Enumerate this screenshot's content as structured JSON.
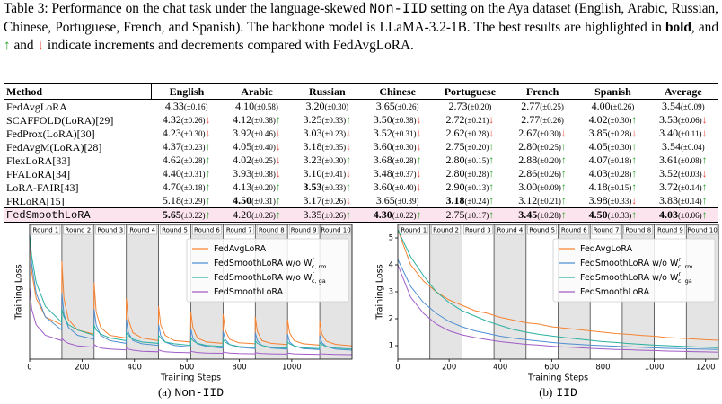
{
  "caption": {
    "parts": [
      "Table 3: Performance on the chat task under the language-skewed ",
      "Non-IID",
      " setting on the Aya dataset (English, Arabic, Russian, Chinese, Portuguese, French, and Spanish). The backbone model is LLaMA-3.2-1B. The best results are highlighted in ",
      "bold",
      ", and ",
      "↑",
      " and ",
      "↓",
      " indicate increments and decrements compared with FedAvgLoRA."
    ]
  },
  "table": {
    "headers": [
      "Method",
      "English",
      "Arabic",
      "Russian",
      "Chinese",
      "Portuguese",
      "French",
      "Spanish",
      "Average"
    ],
    "rows": [
      {
        "method": "FedAvgLoRA",
        "cells": [
          {
            "value": "4.33",
            "std": "(±0.16)"
          },
          {
            "value": "4.10",
            "std": "(±0.58)"
          },
          {
            "value": "3.20",
            "std": "(±0.30)"
          },
          {
            "value": "3.65",
            "std": "(±0.26)"
          },
          {
            "value": "2.73",
            "std": "(±0.20)"
          },
          {
            "value": "2.77",
            "std": "(±0.25)"
          },
          {
            "value": "4.00",
            "std": "(±0.26)"
          },
          {
            "value": "3.54",
            "std": "(±0.09)"
          }
        ]
      },
      {
        "method": "SCAFFOLD(LoRA)[29]",
        "cells": [
          {
            "value": "4.32",
            "std": "(±0.26)",
            "arrow": "↓"
          },
          {
            "value": "4.12",
            "std": "(±0.38)",
            "arrow": "↑"
          },
          {
            "value": "3.25",
            "std": "(±0.33)",
            "arrow": "↑"
          },
          {
            "value": "3.50",
            "std": "(±0.38)",
            "arrow": "↓"
          },
          {
            "value": "2.72",
            "std": "(±0.21)",
            "arrow": "↓"
          },
          {
            "value": "2.77",
            "std": "(±0.26)"
          },
          {
            "value": "4.02",
            "std": "(±0.30)",
            "arrow": "↑"
          },
          {
            "value": "3.53",
            "std": "(±0.06)",
            "arrow": "↓"
          }
        ]
      },
      {
        "method": "FedProx(LoRA)[30]",
        "cells": [
          {
            "value": "4.23",
            "std": "(±0.30)",
            "arrow": "↓"
          },
          {
            "value": "3.92",
            "std": "(±0.46)",
            "arrow": "↓"
          },
          {
            "value": "3.03",
            "std": "(±0.23)",
            "arrow": "↓"
          },
          {
            "value": "3.52",
            "std": "(±0.31)",
            "arrow": "↓"
          },
          {
            "value": "2.62",
            "std": "(±0.28)",
            "arrow": "↓"
          },
          {
            "value": "2.67",
            "std": "(±0.30)",
            "arrow": "↓"
          },
          {
            "value": "3.85",
            "std": "(±0.28)",
            "arrow": "↓"
          },
          {
            "value": "3.40",
            "std": "(±0.11)",
            "arrow": "↓"
          }
        ]
      },
      {
        "method": "FedAvgM(LoRA)[28]",
        "cells": [
          {
            "value": "4.37",
            "std": "(±0.23)",
            "arrow": "↑"
          },
          {
            "value": "4.05",
            "std": "(±0.40)",
            "arrow": "↓"
          },
          {
            "value": "3.18",
            "std": "(±0.35)",
            "arrow": "↓"
          },
          {
            "value": "3.60",
            "std": "(±0.30)",
            "arrow": "↓"
          },
          {
            "value": "2.75",
            "std": "(±0.20)",
            "arrow": "↑"
          },
          {
            "value": "2.80",
            "std": "(±0.25)",
            "arrow": "↑"
          },
          {
            "value": "4.05",
            "std": "(±0.30)",
            "arrow": "↑"
          },
          {
            "value": "3.54",
            "std": "(±0.04)"
          }
        ]
      },
      {
        "method": "FlexLoRA[33]",
        "cells": [
          {
            "value": "4.62",
            "std": "(±0.28)",
            "arrow": "↑"
          },
          {
            "value": "4.02",
            "std": "(±0.25)",
            "arrow": "↓"
          },
          {
            "value": "3.23",
            "std": "(±0.30)",
            "arrow": "↑"
          },
          {
            "value": "3.68",
            "std": "(±0.28)",
            "arrow": "↑"
          },
          {
            "value": "2.80",
            "std": "(±0.15)",
            "arrow": "↑"
          },
          {
            "value": "2.88",
            "std": "(±0.20)",
            "arrow": "↑"
          },
          {
            "value": "4.07",
            "std": "(±0.18)",
            "arrow": "↑"
          },
          {
            "value": "3.61",
            "std": "(±0.08)",
            "arrow": "↑"
          }
        ]
      },
      {
        "method": "FFALoRA[34]",
        "cells": [
          {
            "value": "4.40",
            "std": "(±0.31)",
            "arrow": "↑"
          },
          {
            "value": "3.93",
            "std": "(±0.38)",
            "arrow": "↓"
          },
          {
            "value": "3.10",
            "std": "(±0.41)",
            "arrow": "↓"
          },
          {
            "value": "3.48",
            "std": "(±0.37)",
            "arrow": "↓"
          },
          {
            "value": "2.80",
            "std": "(±0.28)",
            "arrow": "↑"
          },
          {
            "value": "2.86",
            "std": "(±0.26)",
            "arrow": "↑"
          },
          {
            "value": "4.03",
            "std": "(±0.28)",
            "arrow": "↑"
          },
          {
            "value": "3.52",
            "std": "(±0.03)",
            "arrow": "↓"
          }
        ]
      },
      {
        "method": "LoRA-FAIR[43]",
        "cells": [
          {
            "value": "4.70",
            "std": "(±0.18)",
            "arrow": "↑"
          },
          {
            "value": "4.13",
            "std": "(±0.20)",
            "arrow": "↑"
          },
          {
            "value": "3.53",
            "std": "(±0.33)",
            "arrow": "↑",
            "bold": true
          },
          {
            "value": "3.60",
            "std": "(±0.40)",
            "arrow": "↓"
          },
          {
            "value": "2.90",
            "std": "(±0.13)",
            "arrow": "↑"
          },
          {
            "value": "3.00",
            "std": "(±0.09)",
            "arrow": "↑"
          },
          {
            "value": "4.18",
            "std": "(±0.15)",
            "arrow": "↑"
          },
          {
            "value": "3.72",
            "std": "(±0.14)",
            "arrow": "↑"
          }
        ]
      },
      {
        "method": "FRLoRA[15]",
        "cells": [
          {
            "value": "5.18",
            "std": "(±0.29)",
            "arrow": "↑"
          },
          {
            "value": "4.50",
            "std": "(±0.31)",
            "arrow": "↑",
            "bold": true
          },
          {
            "value": "3.17",
            "std": "(±0.26)",
            "arrow": "↓"
          },
          {
            "value": "3.65",
            "std": "(±0.39)"
          },
          {
            "value": "3.18",
            "std": "(±0.24)",
            "arrow": "↑",
            "bold": true
          },
          {
            "value": "3.12",
            "std": "(±0.21)",
            "arrow": "↑"
          },
          {
            "value": "3.98",
            "std": "(±0.33)",
            "arrow": "↓"
          },
          {
            "value": "3.83",
            "std": "(±0.14)",
            "arrow": "↑"
          }
        ]
      },
      {
        "method": "FedSmoothLoRA",
        "highlight": true,
        "cells": [
          {
            "value": "5.65",
            "std": "(±0.22)",
            "arrow": "↑",
            "bold": true
          },
          {
            "value": "4.20",
            "std": "(±0.26)",
            "arrow": "↑"
          },
          {
            "value": "3.35",
            "std": "(±0.26)",
            "arrow": "↑"
          },
          {
            "value": "4.30",
            "std": "(±0.22)",
            "arrow": "↑",
            "bold": true
          },
          {
            "value": "2.75",
            "std": "(±0.17)",
            "arrow": "↑"
          },
          {
            "value": "3.45",
            "std": "(±0.28)",
            "arrow": "↑",
            "bold": true
          },
          {
            "value": "4.50",
            "std": "(±0.33)",
            "arrow": "↑",
            "bold": true
          },
          {
            "value": "4.03",
            "std": "(±0.06)",
            "arrow": "↑",
            "bold": true
          }
        ]
      }
    ]
  },
  "chart_data": [
    {
      "type": "line",
      "subcaption_label": "(a)",
      "subcaption": "Non-IID",
      "xlabel": "Training Steps",
      "ylabel": "Training Loss",
      "xlim": [
        0,
        1230
      ],
      "xticks": [
        0,
        200,
        400,
        600,
        800,
        1000
      ],
      "ylim": [
        0.3,
        5.4
      ],
      "legend": "upper right",
      "rounds": {
        "labels": [
          "Round 1",
          "Round 2",
          "Round 3",
          "Round 4",
          "Round 5",
          "Round 6",
          "Round 7",
          "Round 8",
          "Round 9",
          "Round 10"
        ],
        "edges": [
          0,
          123,
          246,
          369,
          492,
          615,
          738,
          861,
          984,
          1107,
          1230
        ]
      },
      "x": [
        0,
        8,
        25,
        60,
        122,
        123,
        131,
        148,
        183,
        245,
        246,
        254,
        271,
        306,
        368,
        369,
        377,
        394,
        429,
        491,
        492,
        500,
        517,
        552,
        614,
        615,
        623,
        640,
        675,
        737,
        738,
        746,
        763,
        798,
        860,
        861,
        869,
        886,
        921,
        983,
        984,
        992,
        1009,
        1044,
        1106,
        1107,
        1115,
        1132,
        1167,
        1229
      ],
      "series": [
        {
          "name": "FedAvgLoRA",
          "color": "#f58231",
          "values": [
            5.0,
            3.6,
            2.6,
            1.9,
            1.6,
            4.0,
            2.6,
            1.8,
            1.4,
            1.25,
            3.2,
            2.1,
            1.5,
            1.2,
            1.1,
            2.6,
            1.8,
            1.3,
            1.1,
            1.0,
            2.3,
            1.6,
            1.2,
            1.0,
            0.95,
            2.1,
            1.5,
            1.1,
            0.95,
            0.9,
            2.0,
            1.4,
            1.05,
            0.92,
            0.88,
            1.9,
            1.35,
            1.0,
            0.9,
            0.85,
            1.8,
            1.3,
            1.0,
            0.88,
            0.83,
            1.75,
            1.25,
            0.98,
            0.86,
            0.8
          ]
        },
        {
          "name": "FedSmoothLoRA w/o W",
          "name_sup": "r",
          "name_sub": "c, rm",
          "color": "#4e8fd1",
          "values": [
            5.0,
            3.9,
            2.8,
            1.9,
            1.4,
            2.8,
            2.0,
            1.5,
            1.2,
            1.05,
            2.2,
            1.6,
            1.2,
            1.0,
            0.9,
            1.8,
            1.3,
            1.0,
            0.88,
            0.82,
            1.6,
            1.2,
            0.95,
            0.82,
            0.76,
            1.45,
            1.1,
            0.88,
            0.78,
            0.72,
            1.35,
            1.05,
            0.85,
            0.75,
            0.7,
            1.3,
            1.0,
            0.82,
            0.72,
            0.68,
            1.25,
            0.95,
            0.8,
            0.7,
            0.66,
            1.2,
            0.92,
            0.78,
            0.68,
            0.64
          ]
        },
        {
          "name": "FedSmoothLoRA w/o W",
          "name_sup": "r",
          "name_sub": "c, ga",
          "color": "#2bb0a0",
          "values": [
            5.0,
            4.2,
            3.2,
            2.3,
            1.7,
            2.2,
            1.9,
            1.6,
            1.4,
            1.2,
            1.6,
            1.4,
            1.25,
            1.1,
            1.0,
            1.3,
            1.2,
            1.05,
            0.95,
            0.9,
            1.2,
            1.1,
            0.95,
            0.88,
            0.82,
            1.1,
            1.0,
            0.9,
            0.82,
            0.78,
            1.05,
            0.95,
            0.85,
            0.78,
            0.74,
            1.0,
            0.9,
            0.82,
            0.75,
            0.72,
            0.95,
            0.88,
            0.8,
            0.73,
            0.7,
            0.92,
            0.85,
            0.78,
            0.72,
            0.68
          ]
        },
        {
          "name": "FedSmoothLoRA",
          "color": "#a05cc8",
          "values": [
            3.0,
            2.2,
            1.6,
            1.2,
            1.0,
            1.1,
            1.0,
            0.9,
            0.8,
            0.75,
            0.85,
            0.8,
            0.72,
            0.68,
            0.65,
            0.72,
            0.68,
            0.64,
            0.6,
            0.58,
            0.65,
            0.62,
            0.58,
            0.56,
            0.54,
            0.6,
            0.58,
            0.55,
            0.53,
            0.52,
            0.57,
            0.55,
            0.53,
            0.51,
            0.5,
            0.55,
            0.53,
            0.51,
            0.5,
            0.49,
            0.53,
            0.52,
            0.5,
            0.49,
            0.48,
            0.52,
            0.5,
            0.49,
            0.48,
            0.47
          ]
        }
      ]
    },
    {
      "type": "line",
      "subcaption_label": "(b)",
      "subcaption": "IID",
      "xlabel": "Training Steps",
      "ylabel": "Training Loss",
      "xlim": [
        0,
        1250
      ],
      "xticks": [
        0,
        200,
        400,
        600,
        800,
        1000,
        1200
      ],
      "ylim": [
        0.5,
        5.5
      ],
      "yticks": [
        1,
        2,
        3,
        4,
        5
      ],
      "legend": "upper right",
      "rounds": {
        "labels": [
          "Round 1",
          "Round 2",
          "Round 3",
          "Round 4",
          "Round 5",
          "Round 6",
          "Round 7",
          "Round 8",
          "Round 9",
          "Round 10"
        ],
        "edges": [
          0,
          125,
          250,
          375,
          500,
          625,
          750,
          875,
          1000,
          1125,
          1250
        ]
      },
      "x": [
        0,
        50,
        100,
        150,
        200,
        250,
        300,
        350,
        400,
        450,
        500,
        550,
        600,
        650,
        700,
        750,
        800,
        850,
        900,
        950,
        1000,
        1050,
        1100,
        1150,
        1200,
        1250
      ],
      "series": [
        {
          "name": "FedAvgLoRA",
          "color": "#f58231",
          "values": [
            5.3,
            4.0,
            3.4,
            3.0,
            2.7,
            2.5,
            2.3,
            2.2,
            2.05,
            1.95,
            1.85,
            1.8,
            1.7,
            1.65,
            1.6,
            1.55,
            1.5,
            1.45,
            1.42,
            1.38,
            1.35,
            1.3,
            1.28,
            1.25,
            1.22,
            1.2
          ]
        },
        {
          "name": "FedSmoothLoRA w/o W",
          "name_sup": "r",
          "name_sub": "c, rm",
          "color": "#4e8fd1",
          "values": [
            4.2,
            3.2,
            2.6,
            2.2,
            1.9,
            1.7,
            1.55,
            1.45,
            1.35,
            1.28,
            1.22,
            1.17,
            1.12,
            1.08,
            1.05,
            1.02,
            1.0,
            0.98,
            0.96,
            0.94,
            0.92,
            0.9,
            0.89,
            0.88,
            0.87,
            0.86
          ]
        },
        {
          "name": "FedSmoothLoRA w/o W",
          "name_sup": "r",
          "name_sub": "c, ga",
          "color": "#2bb0a0",
          "values": [
            5.3,
            4.3,
            3.6,
            3.0,
            2.6,
            2.3,
            2.1,
            1.9,
            1.75,
            1.6,
            1.5,
            1.42,
            1.36,
            1.3,
            1.25,
            1.2,
            1.15,
            1.12,
            1.08,
            1.05,
            1.02,
            1.0,
            0.98,
            0.96,
            0.94,
            0.92
          ]
        },
        {
          "name": "FedSmoothLoRA",
          "color": "#a05cc8",
          "values": [
            4.0,
            2.8,
            2.2,
            1.8,
            1.55,
            1.4,
            1.3,
            1.22,
            1.15,
            1.1,
            1.05,
            1.02,
            0.98,
            0.95,
            0.93,
            0.9,
            0.88,
            0.86,
            0.85,
            0.83,
            0.82,
            0.8,
            0.79,
            0.78,
            0.77,
            0.76
          ]
        }
      ]
    }
  ]
}
